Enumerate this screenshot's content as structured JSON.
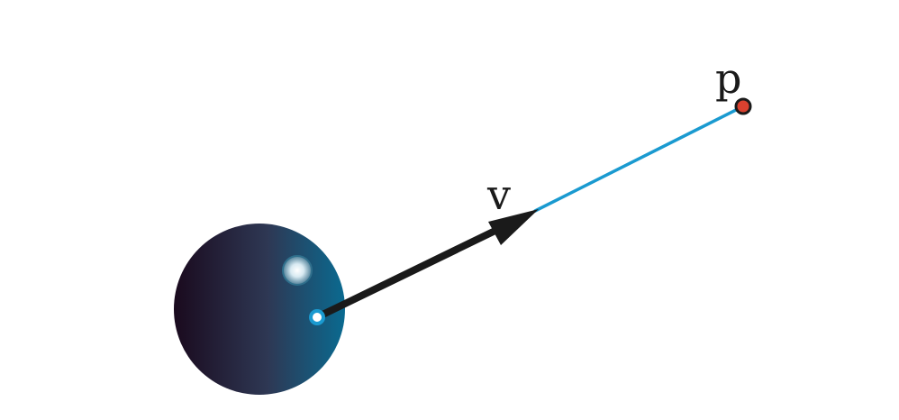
{
  "labels": {
    "point": "p",
    "vector": "v"
  },
  "colors": {
    "background": "#ffffff",
    "vector_arrow": "#1a1a1a",
    "ray_line": "#1a9ad0",
    "origin_ring": "#1a9ad0",
    "point_fill": "#d9412f",
    "point_stroke": "#1a1a1a",
    "sphere_dark": "#1a0a1e",
    "sphere_mid": "#2e3854",
    "sphere_light": "#0a6a90",
    "highlight": "#ffffff"
  },
  "icons": {
    "sphere": "sphere-icon",
    "arrowhead": "arrowhead-icon"
  }
}
